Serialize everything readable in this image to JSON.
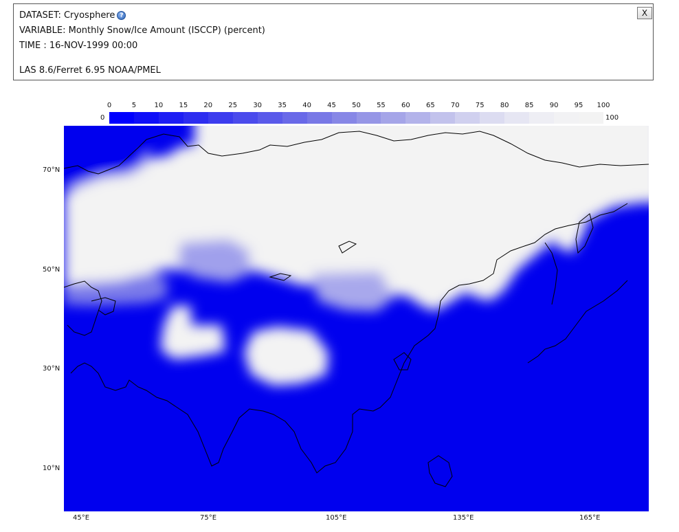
{
  "info": {
    "dataset": "DATASET: Cryosphere",
    "variable": "VARIABLE: Monthly Snow/Ice Amount (ISCCP) (percent)",
    "time": "TIME : 16-NOV-1999 00:00",
    "credit": "LAS 8.6/Ferret 6.95 NOAA/PMEL",
    "help_icon": "question-mark-icon",
    "close_label": "X"
  },
  "legend": {
    "ticks": [
      "0",
      "5",
      "10",
      "15",
      "20",
      "25",
      "30",
      "35",
      "40",
      "45",
      "50",
      "55",
      "60",
      "65",
      "70",
      "75",
      "80",
      "85",
      "90",
      "95",
      "100"
    ],
    "min_label": "0",
    "max_label": "100",
    "colors": [
      "#0000ff",
      "#0f0ff8",
      "#1e1ef4",
      "#2d2df0",
      "#3c3cee",
      "#4b4bec",
      "#5a5aea",
      "#6969e8",
      "#7878e6",
      "#8787e6",
      "#9696e6",
      "#a5a5e8",
      "#b3b3ea",
      "#c2c2ec",
      "#d0d0ef",
      "#dcdcf1",
      "#e6e6f3",
      "#eeeef4",
      "#f2f2f4",
      "#f3f3f3"
    ]
  },
  "axes": {
    "y_labels": [
      "70°N",
      "50°N",
      "30°N",
      "10°N"
    ],
    "x_labels": [
      "45°E",
      "75°E",
      "105°E",
      "135°E",
      "165°E"
    ]
  },
  "colors": {
    "ocean_blue": "#0000ee",
    "snow_white": "#f3f3f3",
    "coast_black": "#000000"
  }
}
